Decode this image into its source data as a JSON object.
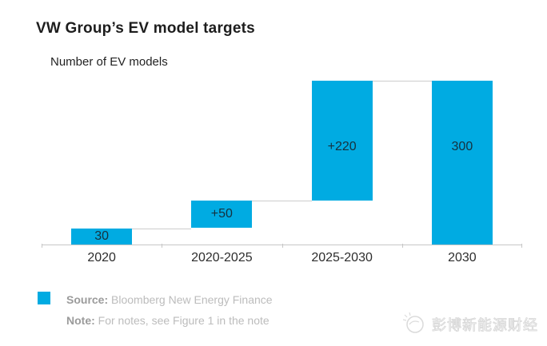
{
  "chart_data": {
    "type": "bar",
    "variant": "waterfall",
    "title": "VW Group’s EV model targets",
    "subtitle": "Number of EV models",
    "categories": [
      "2020",
      "2020-2025",
      "2025-2030",
      "2030"
    ],
    "bars": [
      {
        "category": "2020",
        "label": "30",
        "start": 0,
        "end": 30
      },
      {
        "category": "2020-2025",
        "label": "+50",
        "start": 30,
        "end": 80
      },
      {
        "category": "2025-2030",
        "label": "+220",
        "start": 80,
        "end": 300
      },
      {
        "category": "2030",
        "label": "300",
        "start": 0,
        "end": 300
      }
    ],
    "values_note": "waterfall steps: 30, +50, +220, total 300",
    "xlabel": "",
    "ylabel": "Number of EV models",
    "ylim": [
      0,
      300
    ],
    "grid": false,
    "legend_position": "none",
    "bar_color": "#00abe2",
    "bar_label_color": "#16313e",
    "axis_color": "#c6c6c6",
    "connector_color": "#cdcdcd"
  },
  "footer": {
    "legend_swatch_color": "#00abe2",
    "source_label": "Source:",
    "source_text": "Bloomberg New Energy Finance",
    "note_label": "Note:",
    "note_text": "For notes, see Figure 1 in the note"
  },
  "watermark": {
    "text": "彭博新能源财经",
    "logo": "bnef-logo"
  }
}
